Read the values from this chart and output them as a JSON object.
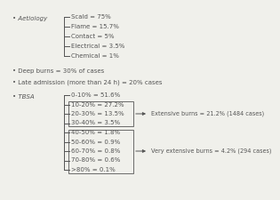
{
  "aetiology_label": "Aetiology",
  "aetiology_items": [
    "Scald = 75%",
    "Flame = 15.7%",
    "Contact = 5%",
    "Electrical = 3.5%",
    "Chemical = 1%"
  ],
  "bullet2": "Deep burns = 30% of cases",
  "bullet3": "Late admission (more than 24 h) = 20% cases",
  "tbsa_label": "TBSA",
  "tbsa_items": [
    "0-10% = 51.6%",
    "10-20% = 27.2%",
    "20-30% = 13.5%",
    "30-40% = 3.5%",
    "40-50% = 1.8%",
    "50-60% = 0.9%",
    "60-70% = 0.8%",
    "70-80% = 0.6%",
    ">80% = 0.1%"
  ],
  "extensive_label": "Extensive burns = 21.2% (1484 cases)",
  "very_extensive_label": "Very extensive burns = 4.2% (294 cases)",
  "text_color": "#555555",
  "bg_color": "#f0f0eb"
}
